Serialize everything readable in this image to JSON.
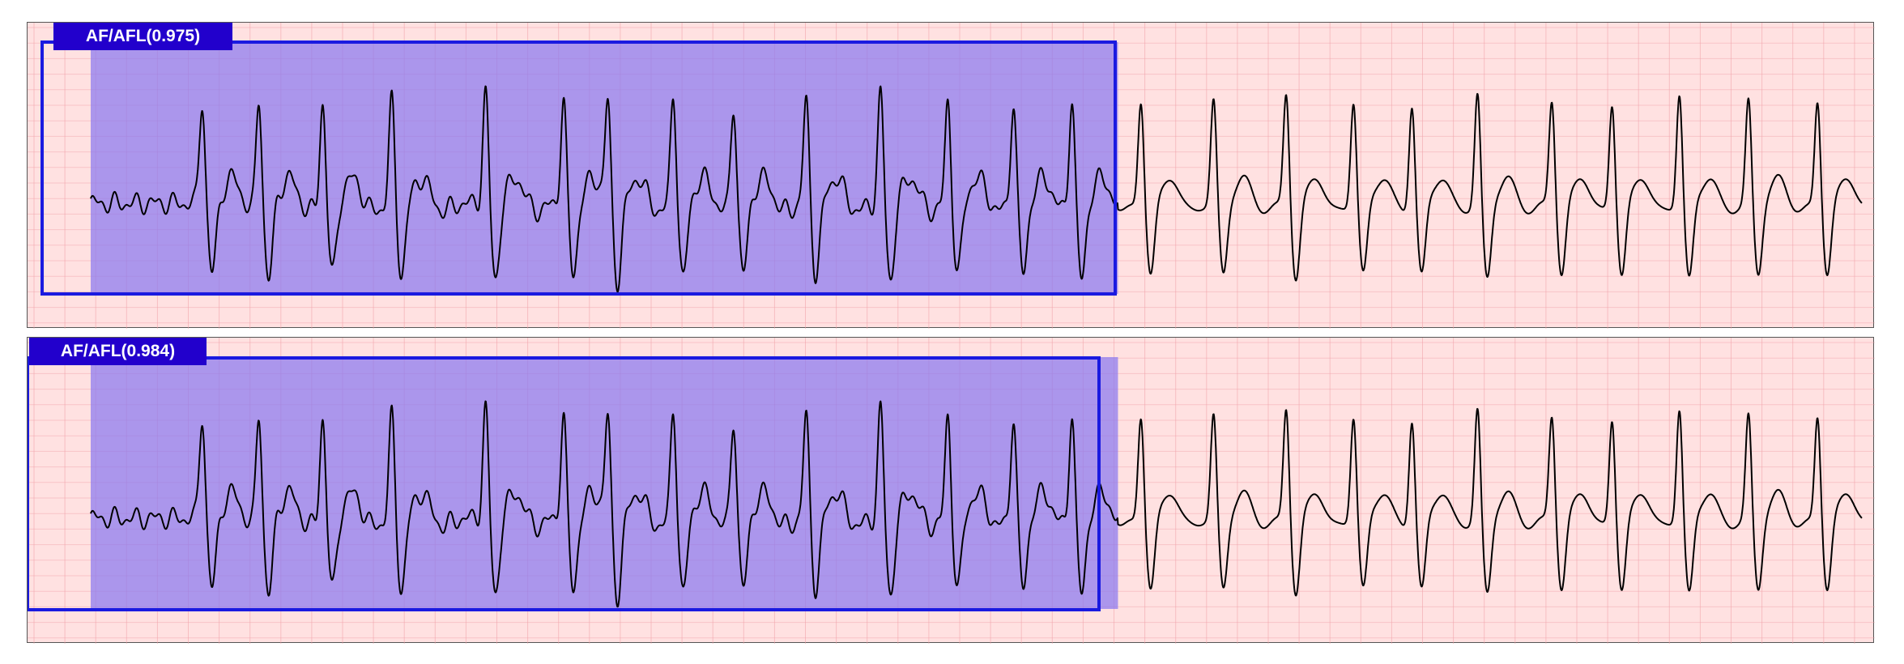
{
  "colors": {
    "background": "#ffe1e1",
    "grid": "#f0a0a8",
    "trace": "#000000",
    "highlight_fill": "#8a78f0",
    "box_stroke": "#1a1ae0",
    "label_bg": "#2200cc",
    "label_text": "#ffffff"
  },
  "chart_data": [
    {
      "type": "line",
      "title": "",
      "label": "AF/AFL(0.975)",
      "class": "AF/AFL",
      "confidence": 0.975,
      "grid": true,
      "detection_window": {
        "start": 0.02,
        "end": 0.58
      },
      "qrs_times": [
        0.063,
        0.095,
        0.131,
        0.17,
        0.223,
        0.267,
        0.292,
        0.329,
        0.363,
        0.404,
        0.446,
        0.484,
        0.521,
        0.554,
        0.593,
        0.634,
        0.675,
        0.713,
        0.746,
        0.783,
        0.825,
        0.859,
        0.897,
        0.936,
        0.975
      ]
    },
    {
      "type": "line",
      "title": "",
      "label": "AF/AFL(0.984)",
      "class": "AF/AFL",
      "confidence": 0.984,
      "grid": true,
      "detection_window": {
        "start": 0.0,
        "end": 0.58
      },
      "qrs_times": [
        0.063,
        0.095,
        0.131,
        0.17,
        0.223,
        0.267,
        0.292,
        0.329,
        0.363,
        0.404,
        0.446,
        0.484,
        0.521,
        0.554,
        0.593,
        0.634,
        0.675,
        0.713,
        0.746,
        0.783,
        0.825,
        0.859,
        0.897,
        0.936,
        0.975
      ]
    }
  ]
}
